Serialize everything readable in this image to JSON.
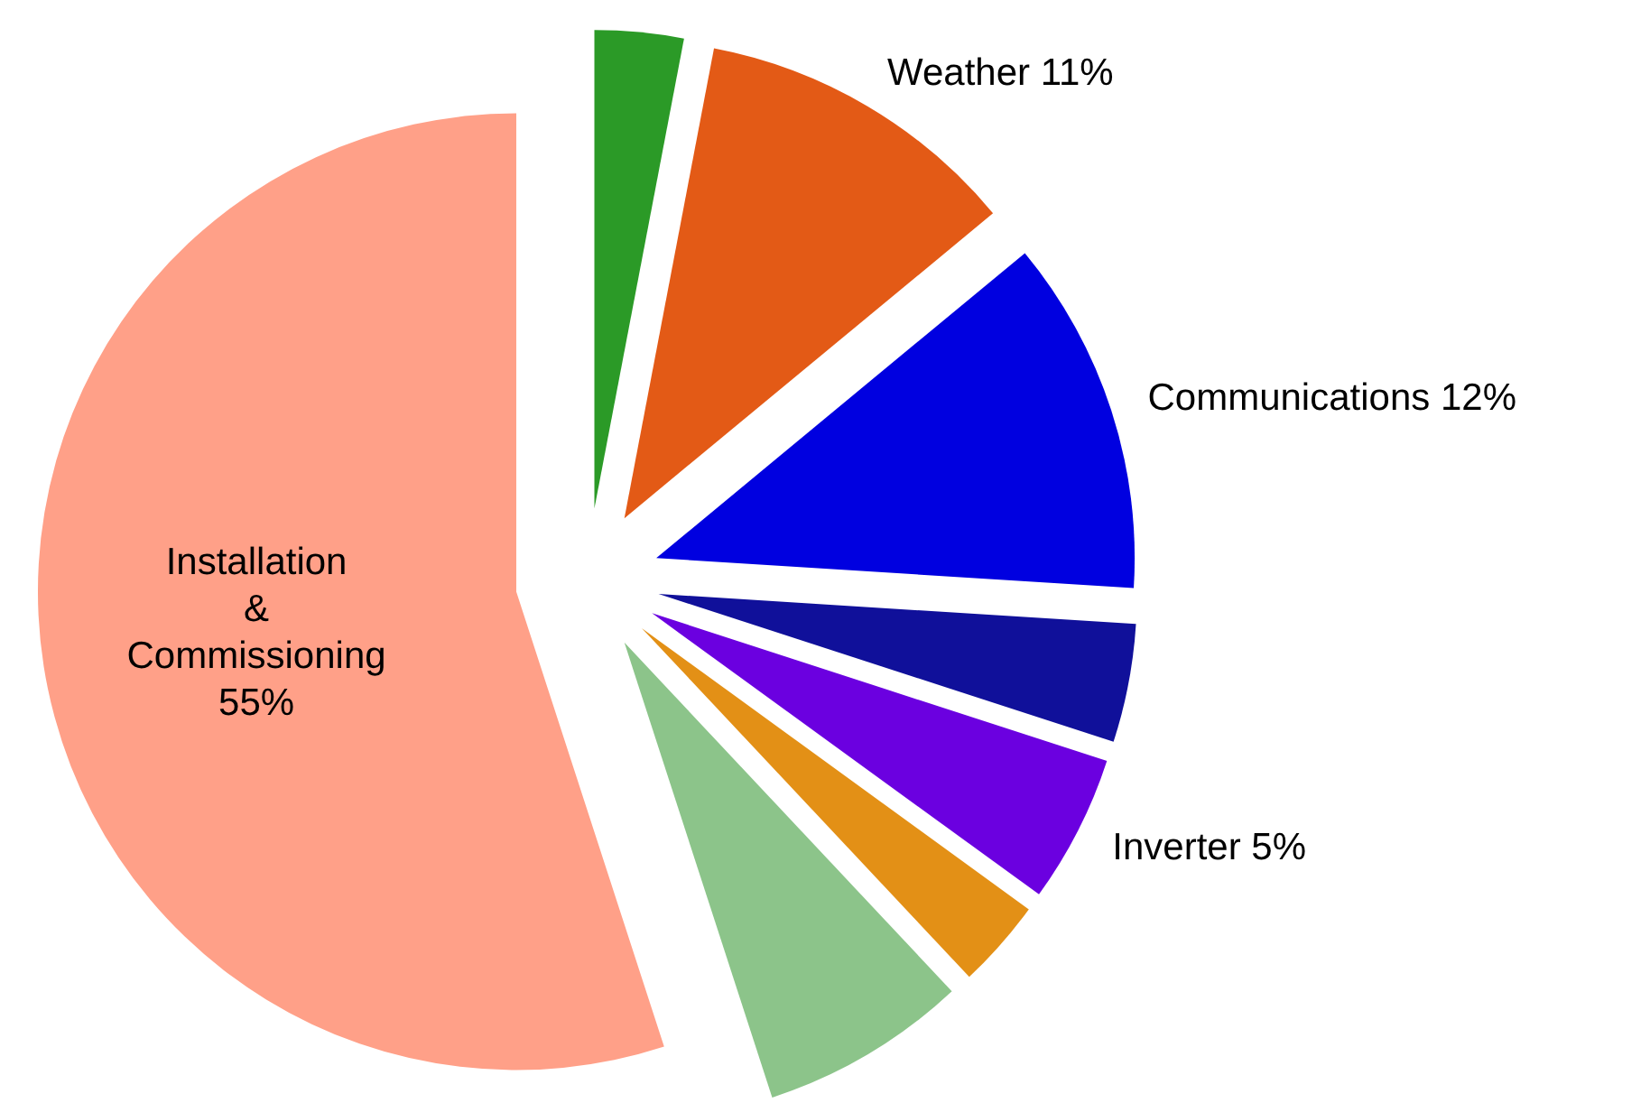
{
  "chart_data": {
    "type": "pie",
    "categories": [
      null,
      "Weather",
      "Communications",
      null,
      "Inverter",
      null,
      null,
      "Installation & Commissioning"
    ],
    "values": [
      3,
      11,
      12,
      4,
      5,
      3,
      7,
      55
    ],
    "colors": [
      "#2b9a27",
      "#e35a16",
      "#0000e0",
      "#10109a",
      "#6b00e0",
      "#e39016",
      "#8cc48a",
      "#ffa088"
    ],
    "value_labels": [
      null,
      "11%",
      "12%",
      null,
      "5%",
      null,
      null,
      "55%"
    ]
  }
}
